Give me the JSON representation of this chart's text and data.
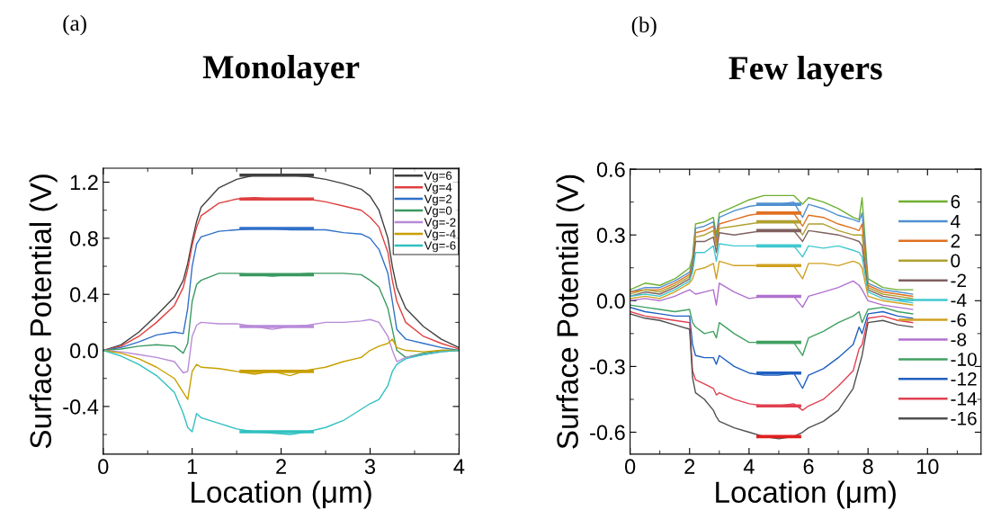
{
  "chart_data": [
    {
      "type": "line",
      "title": "Monolayer",
      "annotations": [
        "(a)"
      ],
      "xlabel": "Location (μm)",
      "ylabel": "Surface Potential (V)",
      "x": [
        0,
        0.2,
        0.4,
        0.6,
        0.8,
        0.9,
        0.95,
        1.0,
        1.05,
        1.1,
        1.3,
        1.5,
        1.7,
        1.9,
        2.1,
        2.3,
        2.5,
        2.7,
        2.9,
        3.0,
        3.1,
        3.2,
        3.25,
        3.3,
        3.4,
        3.6,
        3.8,
        4.0
      ],
      "xlim": [
        0,
        4
      ],
      "xticks": [
        0,
        1,
        2,
        3,
        4
      ],
      "ylim": [
        -0.74,
        1.3
      ],
      "yticks": [
        -0.4,
        {
          "value": 0,
          "label": "0.0"
        },
        0.4,
        0.8,
        1.2
      ],
      "legend": "top right",
      "grid": false,
      "series": [
        {
          "name": "Vg=6",
          "color": "#404040",
          "values": [
            0,
            0.04,
            0.13,
            0.25,
            0.38,
            0.5,
            0.62,
            0.78,
            0.92,
            1.02,
            1.16,
            1.22,
            1.25,
            1.25,
            1.25,
            1.24,
            1.22,
            1.19,
            1.15,
            1.1,
            1.0,
            0.8,
            0.6,
            0.45,
            0.3,
            0.17,
            0.08,
            0.02
          ]
        },
        {
          "name": "Vg=4",
          "color": "#e04040",
          "values": [
            0,
            0.03,
            0.1,
            0.2,
            0.32,
            0.45,
            0.58,
            0.75,
            0.88,
            0.96,
            1.05,
            1.08,
            1.09,
            1.08,
            1.08,
            1.08,
            1.06,
            1.03,
            1.0,
            0.95,
            0.88,
            0.7,
            0.5,
            0.35,
            0.2,
            0.1,
            0.05,
            0.01
          ]
        },
        {
          "name": "Vg=2",
          "color": "#3070c8",
          "values": [
            0,
            0.02,
            0.06,
            0.11,
            0.13,
            0.12,
            0.3,
            0.6,
            0.76,
            0.81,
            0.85,
            0.86,
            0.87,
            0.87,
            0.86,
            0.86,
            0.86,
            0.84,
            0.83,
            0.8,
            0.72,
            0.55,
            0.35,
            0.15,
            0.08,
            0.05,
            0.02,
            0.0
          ]
        },
        {
          "name": "Vg=0",
          "color": "#3a9a60",
          "values": [
            0,
            0.01,
            0.03,
            0.04,
            0.03,
            -0.02,
            0.05,
            0.35,
            0.47,
            0.5,
            0.55,
            0.55,
            0.54,
            0.53,
            0.54,
            0.55,
            0.55,
            0.55,
            0.54,
            0.5,
            0.45,
            0.3,
            0.15,
            0.0,
            -0.05,
            -0.02,
            0.0,
            0.0
          ]
        },
        {
          "name": "Vg=-2",
          "color": "#b88ad8",
          "values": [
            0,
            -0.01,
            -0.03,
            -0.05,
            -0.08,
            -0.16,
            -0.15,
            0.1,
            0.18,
            0.2,
            0.19,
            0.19,
            0.17,
            0.15,
            0.17,
            0.18,
            0.2,
            0.2,
            0.21,
            0.22,
            0.2,
            0.1,
            0.0,
            -0.08,
            -0.05,
            -0.03,
            -0.01,
            0.0
          ]
        },
        {
          "name": "Vg=-4",
          "color": "#c8a000",
          "values": [
            0,
            -0.02,
            -0.06,
            -0.12,
            -0.2,
            -0.3,
            -0.35,
            -0.15,
            -0.1,
            -0.12,
            -0.13,
            -0.15,
            -0.17,
            -0.15,
            -0.18,
            -0.14,
            -0.12,
            -0.08,
            -0.05,
            0.0,
            0.03,
            0.05,
            0.08,
            0.02,
            0.0,
            -0.01,
            0.0,
            0.0
          ]
        },
        {
          "name": "Vg=-6",
          "color": "#30c0c0",
          "values": [
            0,
            -0.04,
            -0.1,
            -0.18,
            -0.3,
            -0.45,
            -0.55,
            -0.58,
            -0.45,
            -0.48,
            -0.52,
            -0.56,
            -0.58,
            -0.59,
            -0.6,
            -0.58,
            -0.55,
            -0.5,
            -0.42,
            -0.38,
            -0.35,
            -0.25,
            -0.15,
            -0.1,
            -0.06,
            -0.03,
            -0.01,
            0.0
          ]
        },
        {
          "type": "line",
          "color": "#404040",
          "x": [
            1.55,
            2.35
          ],
          "values": [
            1.25,
            1.25
          ]
        },
        {
          "type": "line",
          "color": "#e04040",
          "x": [
            1.55,
            2.35
          ],
          "values": [
            1.08,
            1.08
          ]
        },
        {
          "type": "line",
          "color": "#3070c8",
          "x": [
            1.55,
            2.35
          ],
          "values": [
            0.87,
            0.87
          ]
        },
        {
          "type": "line",
          "color": "#3a9a60",
          "x": [
            1.55,
            2.35
          ],
          "values": [
            0.54,
            0.54
          ]
        },
        {
          "type": "line",
          "color": "#b88ad8",
          "x": [
            1.55,
            2.35
          ],
          "values": [
            0.17,
            0.17
          ]
        },
        {
          "type": "line",
          "color": "#c8a000",
          "x": [
            1.55,
            2.35
          ],
          "values": [
            -0.15,
            -0.15
          ]
        },
        {
          "type": "line",
          "color": "#30c0c0",
          "x": [
            1.55,
            2.35
          ],
          "values": [
            -0.58,
            -0.58
          ]
        }
      ]
    },
    {
      "type": "line",
      "title": "Few layers",
      "annotations": [
        "(b)"
      ],
      "xlabel": "Location (μm)",
      "ylabel": "Surface Potential (V)",
      "x": [
        0,
        0.5,
        1,
        1.5,
        2,
        2.1,
        2.2,
        2.5,
        2.8,
        2.9,
        3,
        3.5,
        4,
        4.5,
        5,
        5.5,
        5.8,
        6,
        6.5,
        7,
        7.5,
        7.7,
        7.8,
        8,
        8.5,
        9,
        9.5
      ],
      "xlim": [
        0,
        11.8
      ],
      "xticks": [
        0,
        2,
        4,
        6,
        8,
        10
      ],
      "ylim": [
        -0.7,
        0.6
      ],
      "yticks": [
        -0.6,
        -0.3,
        {
          "value": 0,
          "label": "0.0"
        },
        0.3,
        0.6
      ],
      "legend": "right",
      "grid": false,
      "series": [
        {
          "name": "6",
          "color": "#70b030",
          "values": [
            0.05,
            0.08,
            0.07,
            0.1,
            0.15,
            0.2,
            0.35,
            0.36,
            0.38,
            0.3,
            0.4,
            0.43,
            0.46,
            0.48,
            0.48,
            0.48,
            0.44,
            0.47,
            0.45,
            0.42,
            0.38,
            0.37,
            0.47,
            0.1,
            0.06,
            0.05,
            0.05
          ]
        },
        {
          "name": "4",
          "color": "#5090d0",
          "values": [
            0.04,
            0.06,
            0.06,
            0.09,
            0.13,
            0.18,
            0.33,
            0.34,
            0.36,
            0.28,
            0.38,
            0.41,
            0.43,
            0.44,
            0.44,
            0.45,
            0.38,
            0.44,
            0.42,
            0.39,
            0.37,
            0.36,
            0.4,
            0.08,
            0.05,
            0.04,
            0.03
          ]
        },
        {
          "name": "2",
          "color": "#e07020",
          "values": [
            0.04,
            0.05,
            0.05,
            0.08,
            0.12,
            0.17,
            0.31,
            0.32,
            0.34,
            0.27,
            0.35,
            0.37,
            0.39,
            0.4,
            0.4,
            0.4,
            0.34,
            0.39,
            0.38,
            0.35,
            0.33,
            0.32,
            0.35,
            0.07,
            0.04,
            0.03,
            0.02
          ]
        },
        {
          "name": "0",
          "color": "#b0a030",
          "values": [
            0.03,
            0.05,
            0.04,
            0.07,
            0.11,
            0.16,
            0.29,
            0.3,
            0.32,
            0.25,
            0.33,
            0.34,
            0.35,
            0.36,
            0.36,
            0.36,
            0.3,
            0.35,
            0.35,
            0.32,
            0.3,
            0.3,
            0.3,
            0.06,
            0.03,
            0.02,
            0.01
          ]
        },
        {
          "name": "-2",
          "color": "#806060",
          "values": [
            0.02,
            0.04,
            0.03,
            0.06,
            0.1,
            0.15,
            0.27,
            0.27,
            0.29,
            0.22,
            0.31,
            0.3,
            0.31,
            0.32,
            0.32,
            0.32,
            0.27,
            0.32,
            0.31,
            0.3,
            0.28,
            0.27,
            0.25,
            0.05,
            0.02,
            0.01,
            0.0
          ]
        },
        {
          "name": "-4",
          "color": "#40c8d0",
          "values": [
            0.02,
            0.03,
            0.02,
            0.05,
            0.09,
            0.13,
            0.22,
            0.22,
            0.25,
            0.18,
            0.26,
            0.25,
            0.25,
            0.25,
            0.25,
            0.25,
            0.2,
            0.25,
            0.24,
            0.25,
            0.23,
            0.22,
            0.2,
            0.04,
            0.01,
            0.0,
            -0.01
          ]
        },
        {
          "name": "-6",
          "color": "#d0a020",
          "values": [
            0.01,
            0.02,
            0.01,
            0.04,
            0.08,
            0.1,
            0.14,
            0.15,
            0.17,
            0.1,
            0.18,
            0.16,
            0.16,
            0.16,
            0.16,
            0.16,
            0.1,
            0.17,
            0.17,
            0.16,
            0.18,
            0.17,
            0.15,
            0.02,
            0.0,
            -0.01,
            -0.02
          ]
        },
        {
          "name": "-8",
          "color": "#b070d0",
          "values": [
            0.0,
            0.01,
            0.0,
            0.02,
            0.05,
            0.04,
            0.03,
            0.04,
            0.05,
            -0.02,
            0.08,
            0.04,
            0.01,
            0.02,
            0.02,
            0.02,
            -0.03,
            0.02,
            0.04,
            0.06,
            0.09,
            0.07,
            0.05,
            0.0,
            -0.02,
            -0.03,
            -0.04
          ]
        },
        {
          "name": "-10",
          "color": "#40a060",
          "values": [
            -0.02,
            -0.03,
            -0.04,
            -0.05,
            -0.04,
            -0.1,
            -0.12,
            -0.15,
            -0.14,
            -0.17,
            -0.1,
            -0.15,
            -0.19,
            -0.19,
            -0.19,
            -0.19,
            -0.25,
            -0.17,
            -0.14,
            -0.1,
            -0.07,
            -0.05,
            -0.1,
            -0.04,
            -0.03,
            -0.05,
            -0.06
          ]
        },
        {
          "name": "-12",
          "color": "#2060c0",
          "values": [
            -0.03,
            -0.05,
            -0.06,
            -0.07,
            -0.07,
            -0.2,
            -0.25,
            -0.26,
            -0.26,
            -0.29,
            -0.25,
            -0.3,
            -0.33,
            -0.34,
            -0.34,
            -0.33,
            -0.4,
            -0.34,
            -0.31,
            -0.26,
            -0.2,
            -0.12,
            -0.15,
            -0.06,
            -0.05,
            -0.07,
            -0.08
          ]
        },
        {
          "name": "-14",
          "color": "#e04050",
          "values": [
            -0.05,
            -0.07,
            -0.08,
            -0.09,
            -0.1,
            -0.32,
            -0.36,
            -0.38,
            -0.4,
            -0.43,
            -0.42,
            -0.45,
            -0.47,
            -0.48,
            -0.48,
            -0.47,
            -0.5,
            -0.48,
            -0.45,
            -0.39,
            -0.32,
            -0.22,
            -0.2,
            -0.08,
            -0.07,
            -0.09,
            -0.1
          ]
        },
        {
          "name": "-16",
          "color": "#505050",
          "values": [
            -0.06,
            -0.08,
            -0.09,
            -0.11,
            -0.13,
            -0.35,
            -0.42,
            -0.45,
            -0.5,
            -0.53,
            -0.55,
            -0.58,
            -0.6,
            -0.62,
            -0.63,
            -0.62,
            -0.6,
            -0.58,
            -0.55,
            -0.5,
            -0.4,
            -0.3,
            -0.25,
            -0.1,
            -0.09,
            -0.11,
            -0.12
          ]
        },
        {
          "type": "line",
          "color": "#5090d0",
          "x": [
            4.3,
            5.7
          ],
          "values": [
            0.44,
            0.44
          ]
        },
        {
          "type": "line",
          "color": "#e07020",
          "x": [
            4.3,
            5.7
          ],
          "values": [
            0.4,
            0.4
          ]
        },
        {
          "type": "line",
          "color": "#b0a030",
          "x": [
            4.3,
            5.7
          ],
          "values": [
            0.36,
            0.36
          ]
        },
        {
          "type": "line",
          "color": "#806060",
          "x": [
            4.3,
            5.7
          ],
          "values": [
            0.32,
            0.32
          ]
        },
        {
          "type": "line",
          "color": "#40c8d0",
          "x": [
            4.3,
            5.7
          ],
          "values": [
            0.25,
            0.25
          ]
        },
        {
          "type": "line",
          "color": "#d0a020",
          "x": [
            4.3,
            5.7
          ],
          "values": [
            0.16,
            0.16
          ]
        },
        {
          "type": "line",
          "color": "#b070d0",
          "x": [
            4.3,
            5.7
          ],
          "values": [
            0.02,
            0.02
          ]
        },
        {
          "type": "line",
          "color": "#40a060",
          "x": [
            4.3,
            5.7
          ],
          "values": [
            -0.19,
            -0.19
          ]
        },
        {
          "type": "line",
          "color": "#2060c0",
          "x": [
            4.3,
            5.7
          ],
          "values": [
            -0.33,
            -0.33
          ]
        },
        {
          "type": "line",
          "color": "#e04050",
          "x": [
            4.3,
            5.7
          ],
          "values": [
            -0.48,
            -0.48
          ]
        },
        {
          "type": "line",
          "color": "#e02020",
          "x": [
            4.3,
            5.7
          ],
          "values": [
            -0.62,
            -0.62
          ]
        }
      ]
    }
  ]
}
